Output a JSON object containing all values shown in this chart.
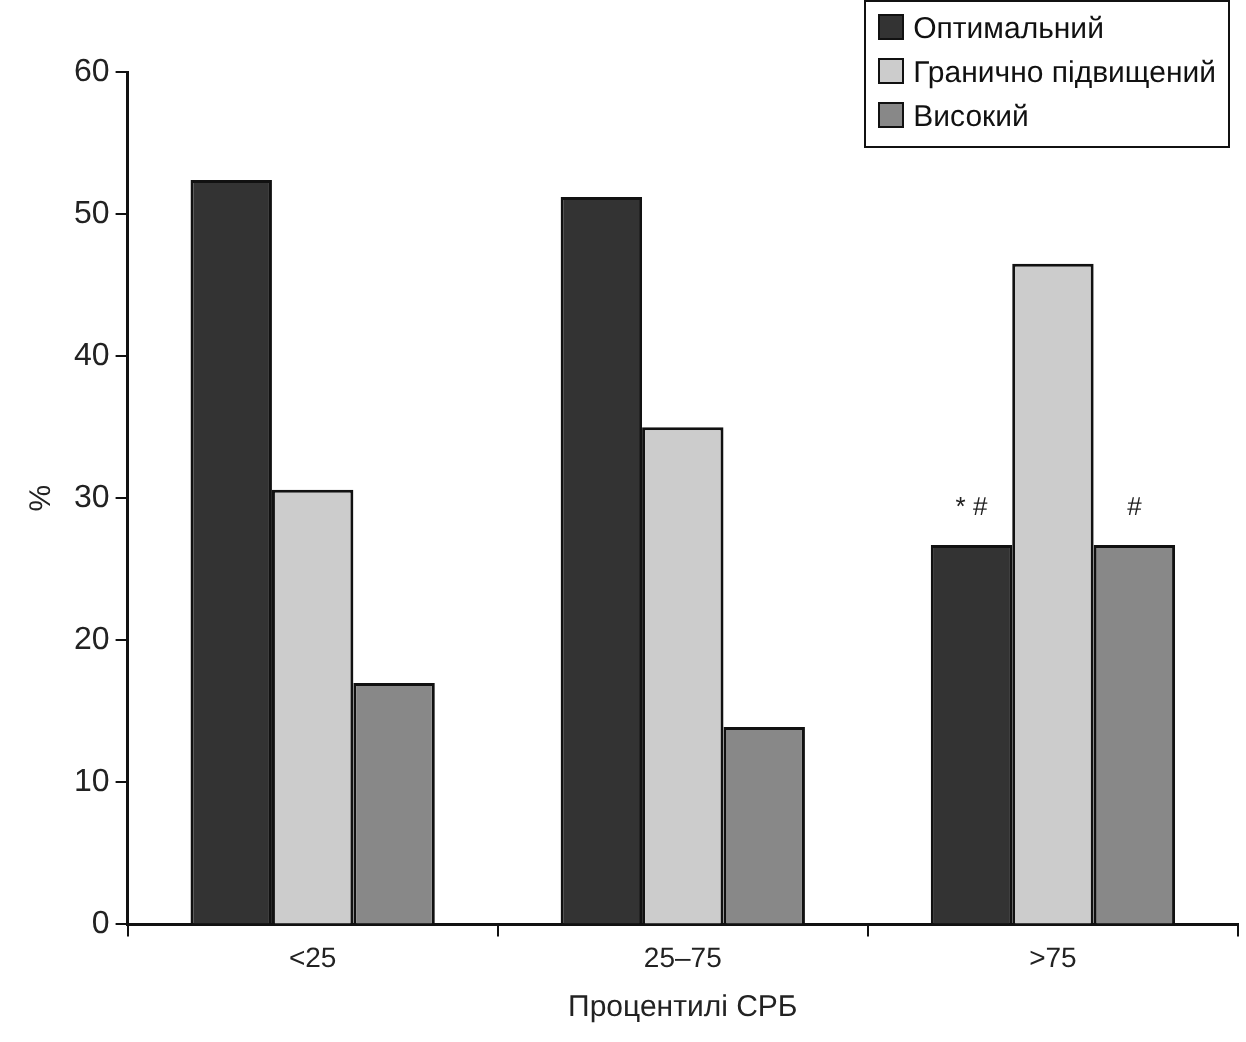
{
  "chart_data": {
    "type": "bar",
    "xlabel": "Процентилі СРБ",
    "ylabel": "%",
    "categories": [
      "<25",
      "25–75",
      ">75"
    ],
    "series": [
      {
        "name": "Оптимальний",
        "color": "#333333",
        "values": [
          52.4,
          51.2,
          26.7
        ]
      },
      {
        "name": "Гранично підвищений",
        "color": "#cccccc",
        "values": [
          30.6,
          35.0,
          46.5
        ]
      },
      {
        "name": "Високий",
        "color": "#888888",
        "values": [
          17.0,
          13.9,
          26.7
        ]
      }
    ],
    "ylim": [
      0,
      60
    ],
    "yticks": [
      0,
      10,
      20,
      30,
      40,
      50,
      60
    ],
    "grid": false,
    "legend": "top right",
    "annotations": [
      "* #",
      "#"
    ]
  }
}
